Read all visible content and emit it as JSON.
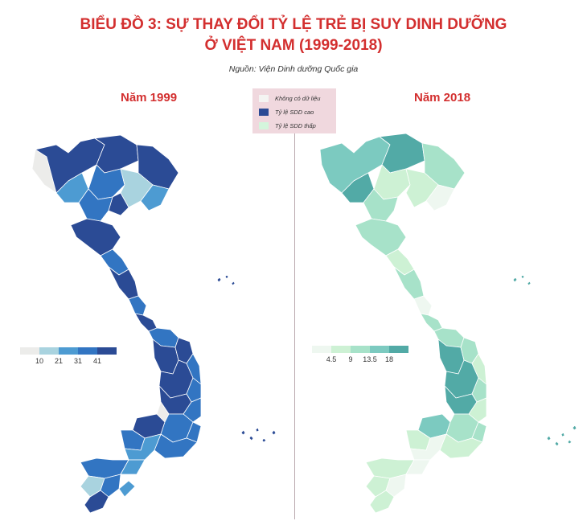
{
  "title_line1": "BIỂU ĐỒ 3: SỰ THAY ĐỔI TỶ LỆ TRẺ BỊ SUY DINH DƯỠNG",
  "title_line2": "Ở VIỆT NAM (1999-2018)",
  "source": "Nguồn: Viện Dinh dưỡng Quốc gia",
  "legend": [
    {
      "label": "Không có dữ liệu",
      "color": "#f4f4f2"
    },
    {
      "label": "Tỷ lệ SDD cao",
      "color": "#2b4b95"
    },
    {
      "label": "Tỷ lệ SDD thấp",
      "color": "#d4f5dc"
    }
  ],
  "maps": [
    {
      "year_label": "Năm 1999",
      "scale_colors": [
        "#ececea",
        "#a9d3df",
        "#4d9bd2",
        "#3275c2",
        "#2b4b95"
      ],
      "scale_ticks": [
        "10",
        "21",
        "31",
        "41"
      ]
    },
    {
      "year_label": "Năm 2018",
      "scale_colors": [
        "#eef7f0",
        "#cdf1d4",
        "#a7e2c9",
        "#7ccac0",
        "#52aaa6"
      ],
      "scale_ticks": [
        "4.5",
        "9",
        "13.5",
        "18"
      ]
    }
  ]
}
